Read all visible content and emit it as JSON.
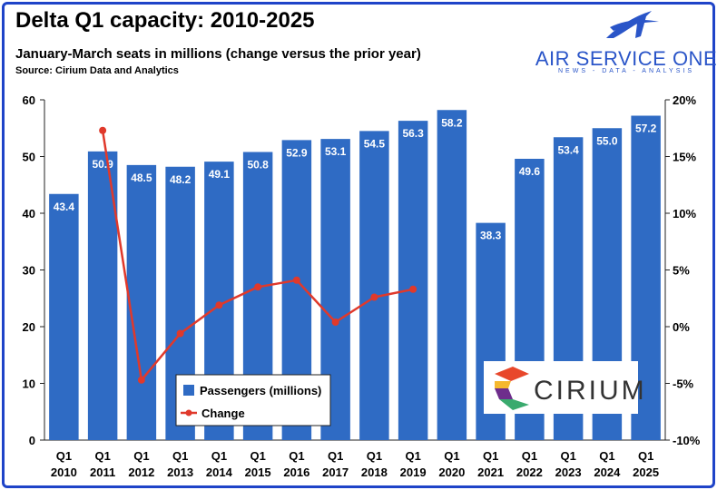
{
  "header": {
    "title": "Delta Q1 capacity: 2010-2025",
    "subtitle": "January-March seats in millions (change versus the prior year)",
    "source": "Source: Cirium Data and Analytics"
  },
  "branding": {
    "air_service_one_name": "AIR SERVICE ONE",
    "air_service_one_tagline": "NEWS - DATA - ANALYSIS",
    "cirium_name": "CIRIUM"
  },
  "colors": {
    "bar": "#2f6bc4",
    "line": "#e0392b",
    "frame": "#1f44c8",
    "brand": "#2a55c8"
  },
  "chart_data": {
    "type": "bar",
    "title": "Delta Q1 capacity: 2010-2025",
    "xlabel": "",
    "ylabel": "",
    "ylim": [
      0,
      60
    ],
    "y2lim": [
      -10,
      20
    ],
    "yticks": [
      0,
      10,
      20,
      30,
      40,
      50,
      60
    ],
    "y2ticks": [
      "-10%",
      "-5%",
      "0%",
      "5%",
      "10%",
      "15%",
      "20%"
    ],
    "y2tick_values": [
      -10,
      -5,
      0,
      5,
      10,
      15,
      20
    ],
    "categories": [
      [
        "Q1",
        "2010"
      ],
      [
        "Q1",
        "2011"
      ],
      [
        "Q1",
        "2012"
      ],
      [
        "Q1",
        "2013"
      ],
      [
        "Q1",
        "2014"
      ],
      [
        "Q1",
        "2015"
      ],
      [
        "Q1",
        "2016"
      ],
      [
        "Q1",
        "2017"
      ],
      [
        "Q1",
        "2018"
      ],
      [
        "Q1",
        "2019"
      ],
      [
        "Q1",
        "2020"
      ],
      [
        "Q1",
        "2021"
      ],
      [
        "Q1",
        "2022"
      ],
      [
        "Q1",
        "2023"
      ],
      [
        "Q1",
        "2024"
      ],
      [
        "Q1",
        "2025"
      ]
    ],
    "series": [
      {
        "name": "Passengers (millions)",
        "type": "bar",
        "axis": "left",
        "values": [
          43.4,
          50.9,
          48.5,
          48.2,
          49.1,
          50.8,
          52.9,
          53.1,
          54.5,
          56.3,
          58.2,
          38.3,
          49.6,
          53.4,
          55.0,
          57.2
        ],
        "labels": [
          "43.4",
          "50.9",
          "48.5",
          "48.2",
          "49.1",
          "50.8",
          "52.9",
          "53.1",
          "54.5",
          "56.3",
          "58.2",
          "38.3",
          "49.6",
          "53.4",
          "55.0",
          "57.2"
        ]
      },
      {
        "name": "Change",
        "type": "line",
        "axis": "right",
        "unit": "%",
        "values": [
          null,
          17.3,
          -4.7,
          -0.6,
          1.9,
          3.5,
          4.1,
          0.4,
          2.6,
          3.3,
          null,
          null,
          null,
          null,
          null,
          null
        ]
      }
    ],
    "legend": [
      "Passengers (millions)",
      "Change"
    ],
    "legend_position": "bottom-left inside plot",
    "grid": false
  }
}
